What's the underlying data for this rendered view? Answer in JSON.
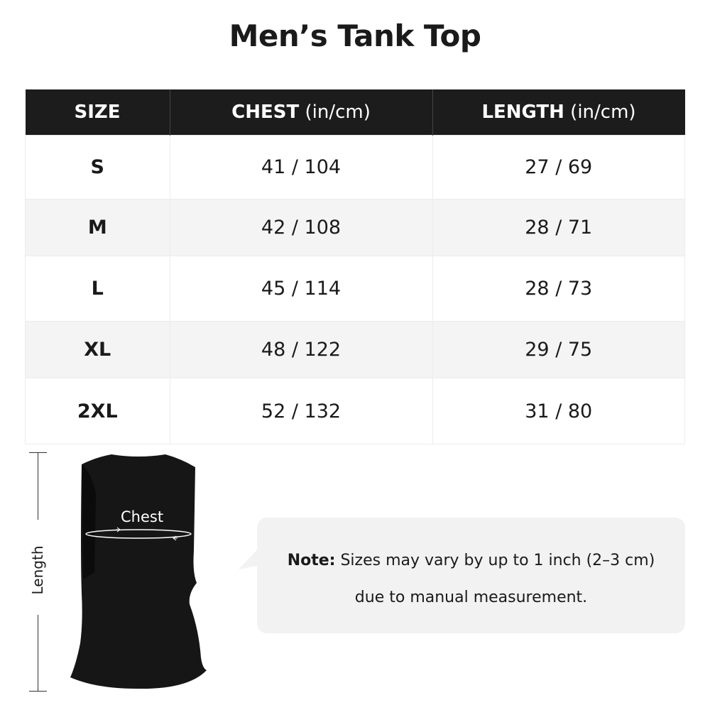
{
  "title": "Men’s Tank Top",
  "table": {
    "headers": [
      {
        "label": "SIZE",
        "unit": ""
      },
      {
        "label": "CHEST",
        "unit": " (in/cm)"
      },
      {
        "label": "LENGTH",
        "unit": " (in/cm)"
      }
    ],
    "rows": [
      {
        "size": "S",
        "chest": "41 / 104",
        "length": "27 / 69"
      },
      {
        "size": "M",
        "chest": "42 / 108",
        "length": "28 / 71"
      },
      {
        "size": "L",
        "chest": "45 / 114",
        "length": "28 / 73"
      },
      {
        "size": "XL",
        "chest": "48 / 122",
        "length": "29 / 75"
      },
      {
        "size": "2XL",
        "chest": "52 / 132",
        "length": "31 / 80"
      }
    ]
  },
  "diagram": {
    "length_label": "Length",
    "chest_label": "Chest"
  },
  "note": {
    "bold": "Note:",
    "line1": " Sizes may vary by up to 1 inch (2–3 cm)",
    "line2": "due to manual measurement."
  }
}
